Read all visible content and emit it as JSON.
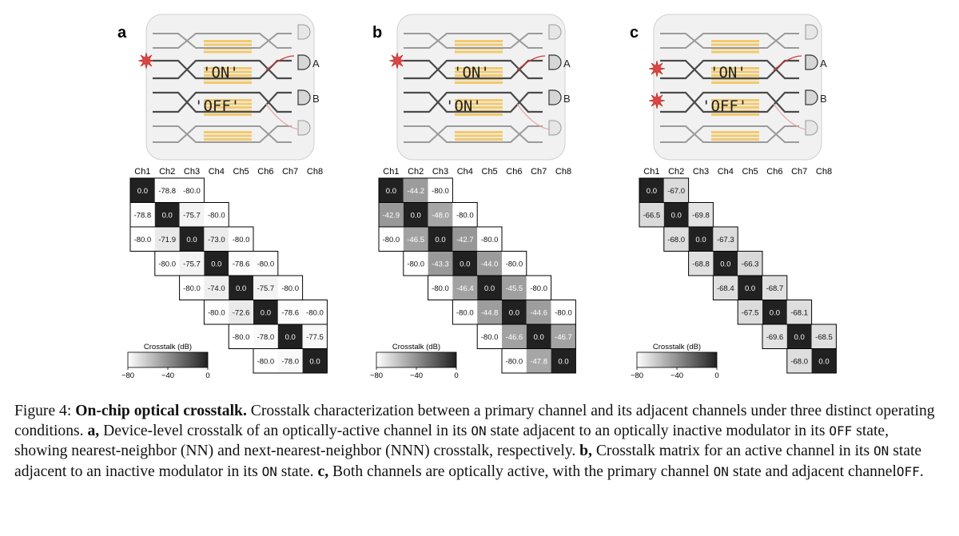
{
  "figure": {
    "panels": [
      {
        "letter": "a",
        "top_state": "'ON'",
        "bottom_state": "'OFF'",
        "detector_a": "A",
        "detector_b": "B",
        "lasers": 1,
        "colorbar": {
          "title": "Crosstalk (dB)",
          "ticks": [
            "−80",
            "−40",
            "0"
          ]
        }
      },
      {
        "letter": "b",
        "top_state": "'ON'",
        "bottom_state": "'ON'",
        "detector_a": "A",
        "detector_b": "B",
        "lasers": 1,
        "colorbar": {
          "title": "Crosstalk (dB)",
          "ticks": [
            "−80",
            "−40",
            "0"
          ]
        }
      },
      {
        "letter": "c",
        "top_state": "'ON'",
        "bottom_state": "'OFF'",
        "detector_a": "A",
        "detector_b": "B",
        "lasers": 2,
        "colorbar": {
          "title": "Crosstalk (dB)",
          "ticks": [
            "−80",
            "−40",
            "0"
          ]
        }
      }
    ]
  },
  "chart_data": [
    {
      "type": "heatmap",
      "panel": "a",
      "columns": [
        "Ch1",
        "Ch2",
        "Ch3",
        "Ch4",
        "Ch5",
        "Ch6",
        "Ch7",
        "Ch8"
      ],
      "colorbar_label": "Crosstalk (dB)",
      "range": [
        -80,
        0
      ],
      "rows": [
        {
          "start": 0,
          "values": [
            0.0,
            -78.8,
            -80.0
          ]
        },
        {
          "start": 0,
          "values": [
            -78.8,
            0.0,
            -75.7,
            -80.0
          ]
        },
        {
          "start": 0,
          "values": [
            -80.0,
            -71.9,
            0.0,
            -73.0,
            -80.0
          ]
        },
        {
          "start": 1,
          "values": [
            -80.0,
            -75.7,
            0.0,
            -78.6,
            -80.0
          ]
        },
        {
          "start": 2,
          "values": [
            -80.0,
            -74.0,
            0.0,
            -75.7,
            -80.0
          ]
        },
        {
          "start": 3,
          "values": [
            -80.0,
            -72.6,
            0.0,
            -78.6,
            -80.0
          ]
        },
        {
          "start": 4,
          "values": [
            -80.0,
            -78.0,
            0.0,
            -77.5
          ]
        },
        {
          "start": 5,
          "values": [
            -80.0,
            -78.0,
            0.0
          ]
        }
      ]
    },
    {
      "type": "heatmap",
      "panel": "b",
      "columns": [
        "Ch1",
        "Ch2",
        "Ch3",
        "Ch4",
        "Ch5",
        "Ch6",
        "Ch7",
        "Ch8"
      ],
      "colorbar_label": "Crosstalk (dB)",
      "range": [
        -80,
        0
      ],
      "rows": [
        {
          "start": 0,
          "values": [
            0.0,
            -44.2,
            -80.0
          ]
        },
        {
          "start": 0,
          "values": [
            -42.9,
            0.0,
            -48.0,
            -80.0
          ]
        },
        {
          "start": 0,
          "values": [
            -80.0,
            -46.5,
            0.0,
            -42.7,
            -80.0
          ]
        },
        {
          "start": 1,
          "values": [
            -80.0,
            -43.3,
            0.0,
            -44.0,
            -80.0
          ]
        },
        {
          "start": 2,
          "values": [
            -80.0,
            -46.4,
            0.0,
            -45.5,
            -80.0
          ]
        },
        {
          "start": 3,
          "values": [
            -80.0,
            -44.8,
            0.0,
            -44.6,
            -80.0
          ]
        },
        {
          "start": 4,
          "values": [
            -80.0,
            -46.6,
            0.0,
            -46.7
          ]
        },
        {
          "start": 5,
          "values": [
            -80.0,
            -47.8,
            0.0
          ]
        }
      ]
    },
    {
      "type": "heatmap",
      "panel": "c",
      "columns": [
        "Ch1",
        "Ch2",
        "Ch3",
        "Ch4",
        "Ch5",
        "Ch6",
        "Ch7",
        "Ch8"
      ],
      "colorbar_label": "Crosstalk (dB)",
      "range": [
        -80,
        0
      ],
      "rows": [
        {
          "start": 0,
          "values": [
            0.0,
            -67.0
          ]
        },
        {
          "start": 0,
          "values": [
            -66.5,
            0.0,
            -69.8
          ]
        },
        {
          "start": 1,
          "values": [
            -68.0,
            0.0,
            -67.3
          ]
        },
        {
          "start": 2,
          "values": [
            -68.8,
            0.0,
            -66.3
          ]
        },
        {
          "start": 3,
          "values": [
            -68.4,
            0.0,
            -68.7
          ]
        },
        {
          "start": 4,
          "values": [
            -67.5,
            0.0,
            -68.1
          ]
        },
        {
          "start": 5,
          "values": [
            -69.6,
            0.0,
            -68.5
          ]
        },
        {
          "start": 6,
          "values": [
            -68.0,
            0.0
          ]
        }
      ]
    }
  ],
  "caption": {
    "label": "Figure 4:",
    "title": "On-chip optical crosstalk.",
    "s1": "Crosstalk characterization between a primary channel and its adjacent channels under three distinct operating conditions.",
    "a_label": "a,",
    "s2": "Device-level crosstalk of an optically-active channel in its",
    "on1": "ON",
    "s3": "state adjacent to an optically inactive modulator in its",
    "off1": "OFF",
    "s4": "state, showing nearest-neighbor (NN) and next-nearest-neighbor (NNN) crosstalk, respectively.",
    "b_label": "b,",
    "s5": "Crosstalk matrix for an active channel in its",
    "on2": "ON",
    "s6": "state adjacent to an inactive modulator in its",
    "on3": "ON",
    "s7": "state.",
    "c_label": "c,",
    "s8": "Both channels are optically active, with the primary channel",
    "on4": "ON",
    "s9": "state and adjacent channel",
    "off2": "OFF",
    "s10": "."
  }
}
